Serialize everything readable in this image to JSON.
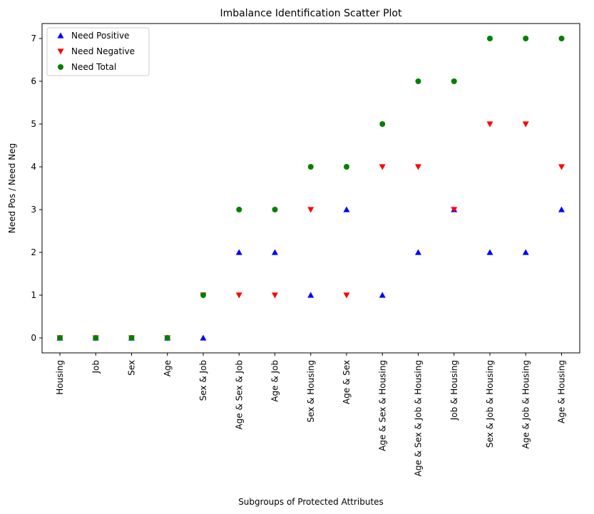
{
  "chart_data": {
    "type": "scatter",
    "title": "Imbalance Identification Scatter Plot",
    "xlabel": "Subgroups of Protected Attributes",
    "ylabel": "Need Pos / Need Neg",
    "ylim": [
      -0.35,
      7.35
    ],
    "yticks": [
      0,
      1,
      2,
      3,
      4,
      5,
      6,
      7
    ],
    "grid": false,
    "legend_position": "top-left",
    "categories": [
      "Housing",
      "Job",
      "Sex",
      "Age",
      "Sex & Job",
      "Age & Sex & Job",
      "Age & Job",
      "Sex & Housing",
      "Age & Sex",
      "Age & Sex & Housing",
      "Age & Sex & Job & Housing",
      "Job & Housing",
      "Sex & Job & Housing",
      "Age & Job & Housing",
      "Age & Housing"
    ],
    "series": [
      {
        "name": "Need Positive",
        "marker": "triangle-up",
        "color": "#0000ff",
        "values": [
          0,
          0,
          0,
          0,
          0,
          2,
          2,
          1,
          3,
          1,
          2,
          3,
          2,
          2,
          3
        ]
      },
      {
        "name": "Need Negative",
        "marker": "triangle-down",
        "color": "#ff0000",
        "values": [
          0,
          0,
          0,
          0,
          1,
          1,
          1,
          3,
          1,
          4,
          4,
          3,
          5,
          5,
          4
        ]
      },
      {
        "name": "Need Total",
        "marker": "circle",
        "color": "#008000",
        "values": [
          0,
          0,
          0,
          0,
          1,
          3,
          3,
          4,
          4,
          5,
          6,
          6,
          7,
          7,
          7
        ]
      }
    ]
  }
}
